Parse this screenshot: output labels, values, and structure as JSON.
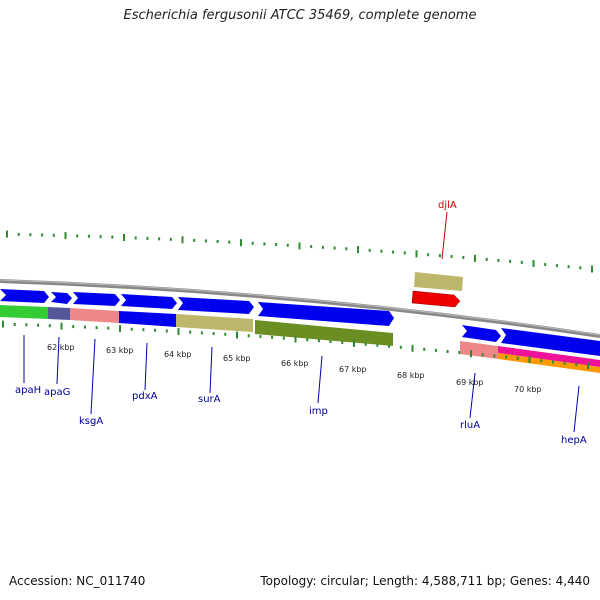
{
  "title": "Escherichia fergusonii ATCC 35469, complete genome",
  "accession_text": "Accession: NC_011740",
  "topology_text": "Topology: circular; Length: 4,588,711 bp; Genes: 4,440",
  "kbp_labels": [
    "62 kbp",
    "63 kbp",
    "64 kbp",
    "65 kbp",
    "66 kbp",
    "67 kbp",
    "68 kbp",
    "69 kbp",
    "70 kbp"
  ],
  "gene_labels": [
    "apaH",
    "apaG",
    "ksgA",
    "pdxA",
    "surA",
    "imp",
    "rluA",
    "hepA",
    "djlA"
  ],
  "colors": {
    "forward_cds": "#0000ee",
    "reverse_cds": "#ee0000",
    "backbone": "#888888",
    "tick": "#2e8b2e",
    "gene_label": "#000099",
    "reverse_label": "#cc0000",
    "cog_green_bright": "#33cc33",
    "cog_purple": "#555599",
    "cog_salmon": "#ee8888",
    "cog_khaki": "#bdb76b",
    "cog_olive": "#6b8e23",
    "cog_magenta": "#ee1199",
    "cog_orange": "#ff9900"
  }
}
